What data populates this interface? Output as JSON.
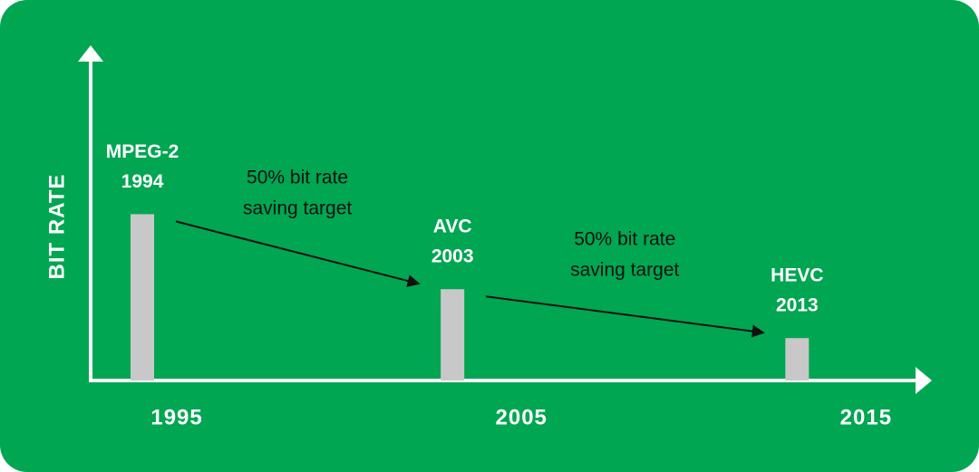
{
  "chart_data": {
    "type": "bar",
    "y_label": "BIT RATE",
    "categories": [
      "MPEG-2",
      "AVC",
      "HEVC"
    ],
    "x": [
      1994,
      2003,
      2013
    ],
    "values": [
      51,
      28,
      13
    ],
    "color": "#c8c8c8",
    "xlim": [
      1992.5,
      2016.7
    ],
    "xticks": [
      1995,
      2005,
      2015
    ],
    "ylim": [
      0,
      100
    ],
    "annotations": [
      [
        "50% bit rate",
        "saving target"
      ],
      [
        "50% bit rate",
        "saving target"
      ]
    ]
  }
}
